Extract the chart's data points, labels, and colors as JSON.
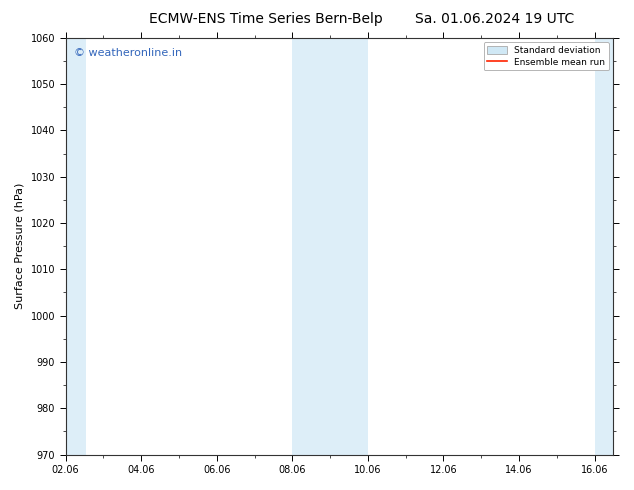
{
  "title_left": "ECMW-ENS Time Series Bern-Belp",
  "title_right": "Sa. 01.06.2024 19 UTC",
  "ylabel": "Surface Pressure (hPa)",
  "ylim": [
    970,
    1060
  ],
  "yticks": [
    970,
    980,
    990,
    1000,
    1010,
    1020,
    1030,
    1040,
    1050,
    1060
  ],
  "xlim": [
    0,
    14.5
  ],
  "xtick_labels": [
    "02.06",
    "04.06",
    "06.06",
    "08.06",
    "10.06",
    "12.06",
    "14.06",
    "16.06"
  ],
  "xtick_positions": [
    0,
    2,
    4,
    6,
    8,
    10,
    12,
    14
  ],
  "shaded_bands": [
    {
      "x_start": 0.0,
      "x_end": 0.55,
      "color": "#ddeef8"
    },
    {
      "x_start": 6.0,
      "x_end": 8.0,
      "color": "#ddeef8"
    },
    {
      "x_start": 14.0,
      "x_end": 14.5,
      "color": "#ddeef8"
    }
  ],
  "background_color": "#ffffff",
  "plot_bg_color": "#ffffff",
  "watermark_text": "© weatheronline.in",
  "watermark_color": "#3366bb",
  "legend_std_color": "#d0e8f5",
  "legend_ens_color": "#ff2200",
  "title_fontsize": 10,
  "axis_label_fontsize": 8,
  "tick_fontsize": 7,
  "watermark_fontsize": 8
}
